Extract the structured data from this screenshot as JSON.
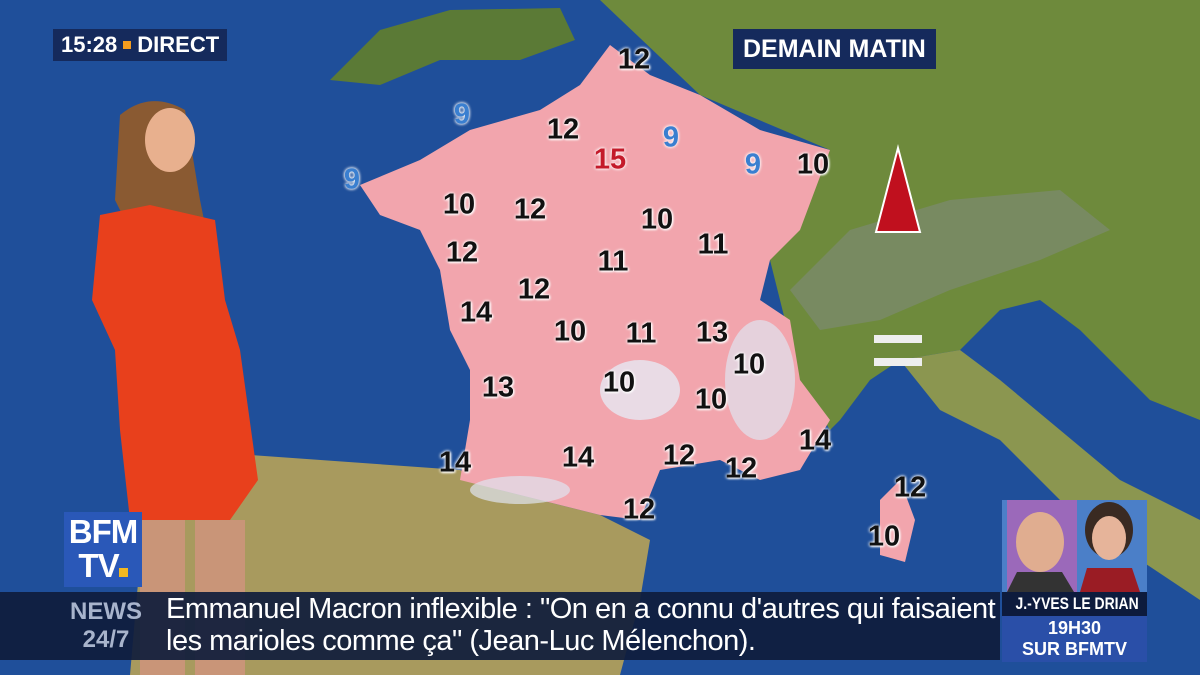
{
  "header": {
    "time": "15:28",
    "live_label": "DIRECT",
    "map_title": "DEMAIN MATIN"
  },
  "colors": {
    "sea": "#1f4f9a",
    "land": "#6e8a3c",
    "france": "#f2a5ad",
    "banner": "#152a5c",
    "accent": "#f39c1f"
  },
  "map_symbols": {
    "alps": "red-triangle-icon",
    "italy": "equal-sign-icon"
  },
  "temperatures": [
    {
      "value": "12",
      "style": "normal"
    },
    {
      "value": "9",
      "style": "cool"
    },
    {
      "value": "12",
      "style": "normal"
    },
    {
      "value": "15",
      "style": "warm"
    },
    {
      "value": "9",
      "style": "cool"
    },
    {
      "value": "9",
      "style": "cool"
    },
    {
      "value": "10",
      "style": "normal"
    },
    {
      "value": "9",
      "style": "cool"
    },
    {
      "value": "10",
      "style": "normal"
    },
    {
      "value": "12",
      "style": "normal"
    },
    {
      "value": "10",
      "style": "normal"
    },
    {
      "value": "11",
      "style": "normal"
    },
    {
      "value": "12",
      "style": "normal"
    },
    {
      "value": "11",
      "style": "normal"
    },
    {
      "value": "12",
      "style": "normal"
    },
    {
      "value": "14",
      "style": "normal"
    },
    {
      "value": "10",
      "style": "normal"
    },
    {
      "value": "11",
      "style": "normal"
    },
    {
      "value": "13",
      "style": "normal"
    },
    {
      "value": "10",
      "style": "normal"
    },
    {
      "value": "13",
      "style": "normal"
    },
    {
      "value": "10",
      "style": "normal"
    },
    {
      "value": "10",
      "style": "normal"
    },
    {
      "value": "14",
      "style": "normal"
    },
    {
      "value": "14",
      "style": "normal"
    },
    {
      "value": "14",
      "style": "normal"
    },
    {
      "value": "12",
      "style": "normal"
    },
    {
      "value": "12",
      "style": "normal"
    },
    {
      "value": "12",
      "style": "normal"
    },
    {
      "value": "12",
      "style": "normal"
    },
    {
      "value": "10",
      "style": "normal"
    }
  ],
  "logo": {
    "line1": "BFM",
    "line2": "TV"
  },
  "ticker": {
    "label_top": "NEWS",
    "label_bottom": "24/7",
    "headline": "Emmanuel Macron inflexible : \"On en a connu d'autres qui faisaient les marioles comme ça\" (Jean-Luc Mélenchon)."
  },
  "promo": {
    "name": "J.-YVES LE DRIAN",
    "time": "19H30",
    "channel": "SUR BFMTV"
  }
}
